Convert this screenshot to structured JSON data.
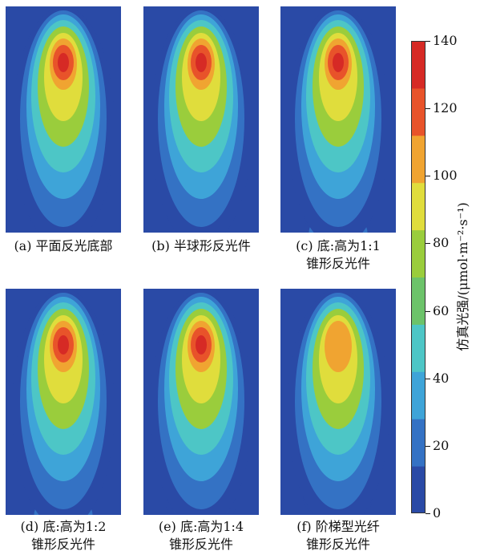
{
  "panels": [
    {
      "id": "a",
      "caption_lines": [
        "(a) 平面反光底部"
      ],
      "tip_peak": 140,
      "lower_blobs": []
    },
    {
      "id": "b",
      "caption_lines": [
        "(b) 半球形反光件"
      ],
      "tip_peak": 140,
      "lower_blobs": [
        {
          "level": 55,
          "pos": 0.9
        }
      ]
    },
    {
      "id": "c",
      "caption_lines": [
        "(c) 底:高为1:1",
        "锥形反光件"
      ],
      "tip_peak": 140,
      "lower_blobs": [
        {
          "level": 65,
          "pos": 1.0
        }
      ]
    },
    {
      "id": "d",
      "caption_lines": [
        "(d)  底:高为1:2",
        "锥形反光件"
      ],
      "tip_peak": 140,
      "lower_blobs": [
        {
          "level": 55,
          "pos": 1.0
        }
      ]
    },
    {
      "id": "e",
      "caption_lines": [
        "(e) 底:高为1:4",
        "锥形反光件"
      ],
      "tip_peak": 140,
      "lower_blobs": [
        {
          "level": 25,
          "pos": 0.95
        }
      ]
    },
    {
      "id": "f",
      "caption_lines": [
        "(f) 阶梯型光纤",
        "锥形反光件"
      ],
      "tip_peak": 110,
      "lower_blobs": [
        {
          "level": 65,
          "pos": 0.58
        },
        {
          "level": 55,
          "pos": 0.92
        }
      ]
    }
  ],
  "colorbar": {
    "title": "仿真光强/(μmol·m⁻²·s⁻¹)",
    "ticks": [
      "0",
      "20",
      "40",
      "60",
      "80",
      "100",
      "120",
      "140"
    ],
    "min": 0,
    "max": 140,
    "colors": [
      "#2a4aa6",
      "#3472c4",
      "#3ea4d8",
      "#4dc6c6",
      "#6cc36a",
      "#9acd3c",
      "#e0dd3c",
      "#f0a431",
      "#e8532a",
      "#d62a25"
    ]
  },
  "chart_data": {
    "type": "heatmap",
    "title": "",
    "colorbar_label": "仿真光强/(μmol·m⁻²·s⁻¹)",
    "colorbar_range": [
      0,
      140
    ],
    "panels": [
      {
        "name": "(a) 平面反光底部",
        "peak": 140
      },
      {
        "name": "(b) 半球形反光件",
        "peak": 140
      },
      {
        "name": "(c) 底:高为1:1 锥形反光件",
        "peak": 140
      },
      {
        "name": "(d) 底:高为1:2 锥形反光件",
        "peak": 140
      },
      {
        "name": "(e) 底:高为1:4 锥形反光件",
        "peak": 140
      },
      {
        "name": "(f) 阶梯型光纤 锥形反光件",
        "peak": 110
      }
    ]
  }
}
